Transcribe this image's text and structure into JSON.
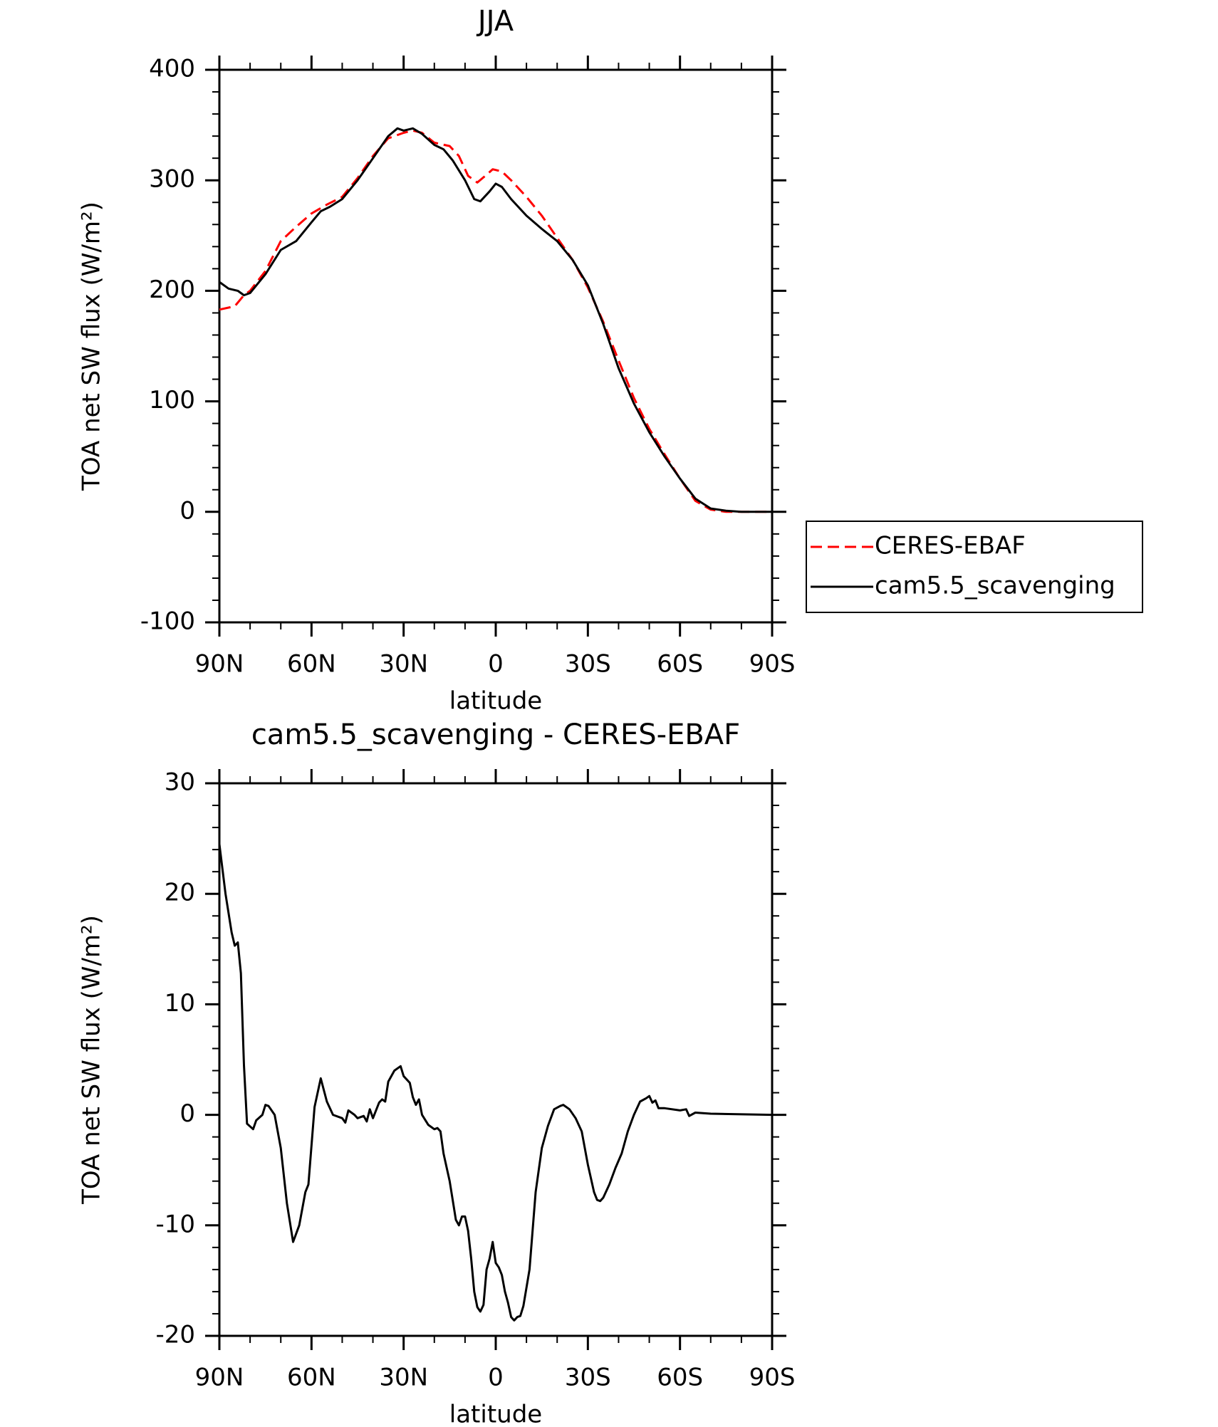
{
  "chart_data": [
    {
      "type": "line",
      "title": "JJA",
      "xlabel": "latitude",
      "ylabel": "TOA net SW flux (W/m²)",
      "xlim": [
        90,
        -90
      ],
      "xticks": [
        {
          "value": 90,
          "label": "90N"
        },
        {
          "value": 60,
          "label": "60N"
        },
        {
          "value": 30,
          "label": "30N"
        },
        0,
        {
          "value": -30,
          "label": "30S"
        },
        {
          "value": -60,
          "label": "60S"
        },
        {
          "value": -90,
          "label": "90S"
        }
      ],
      "ylim": [
        -100,
        400
      ],
      "yticks": [
        -100,
        0,
        100,
        200,
        300,
        400
      ],
      "legend": "right",
      "series": [
        {
          "name": "CERES-EBAF",
          "color": "#ff0000",
          "dash": true,
          "x": [
            90,
            85,
            82,
            80,
            75,
            70,
            65,
            60,
            55,
            50,
            45,
            40,
            35,
            30,
            27,
            24,
            20,
            15,
            12,
            9,
            6,
            3,
            1,
            -2,
            -5,
            -10,
            -15,
            -20,
            -25,
            -30,
            -35,
            -40,
            -45,
            -50,
            -55,
            -60,
            -65,
            -70,
            -75,
            -90
          ],
          "values": [
            183,
            186,
            196,
            200,
            218,
            245,
            258,
            270,
            278,
            285,
            302,
            322,
            338,
            343,
            345,
            343,
            334,
            331,
            322,
            304,
            298,
            305,
            310,
            308,
            300,
            285,
            268,
            248,
            228,
            203,
            172,
            137,
            103,
            75,
            52,
            30,
            10,
            2,
            0,
            0
          ]
        },
        {
          "name": "cam5.5_scavenging",
          "color": "#000000",
          "dash": false,
          "x": [
            90,
            87,
            84,
            82,
            80,
            75,
            70,
            65,
            60,
            57,
            54,
            50,
            45,
            40,
            35,
            32,
            30,
            27,
            24,
            20,
            17,
            14,
            10,
            7,
            5,
            2,
            0,
            -2,
            -5,
            -10,
            -15,
            -20,
            -25,
            -30,
            -35,
            -40,
            -45,
            -50,
            -55,
            -60,
            -65,
            -70,
            -75,
            -80,
            -90
          ],
          "values": [
            208,
            202,
            200,
            196,
            198,
            215,
            237,
            245,
            262,
            272,
            276,
            283,
            300,
            320,
            340,
            347,
            345,
            347,
            342,
            332,
            328,
            318,
            300,
            283,
            281,
            290,
            297,
            294,
            283,
            268,
            256,
            245,
            228,
            205,
            170,
            130,
            98,
            72,
            50,
            30,
            12,
            3,
            1,
            0,
            0
          ]
        }
      ]
    },
    {
      "type": "line",
      "title": "cam5.5_scavenging - CERES-EBAF",
      "xlabel": "latitude",
      "ylabel": "TOA net SW flux (W/m²)",
      "xlim": [
        90,
        -90
      ],
      "xticks": [
        {
          "value": 90,
          "label": "90N"
        },
        {
          "value": 60,
          "label": "60N"
        },
        {
          "value": 30,
          "label": "30N"
        },
        0,
        {
          "value": -30,
          "label": "30S"
        },
        {
          "value": -60,
          "label": "60S"
        },
        {
          "value": -90,
          "label": "90S"
        }
      ],
      "ylim": [
        -20,
        30
      ],
      "yticks": [
        -20,
        -10,
        0,
        10,
        20,
        30
      ],
      "color": "#000000",
      "x": [
        90,
        88,
        86,
        85,
        84,
        83,
        82,
        81,
        79,
        78,
        76,
        75,
        74,
        72,
        70,
        68,
        66,
        64,
        62,
        61,
        59,
        57,
        55,
        53,
        50,
        49,
        48,
        46,
        45,
        43,
        42,
        41,
        40,
        38,
        37,
        36,
        35,
        33,
        31,
        30,
        28,
        27,
        26,
        25,
        24,
        22,
        20,
        19,
        18,
        17,
        15,
        13,
        12,
        11,
        10,
        9,
        8,
        7,
        6,
        5,
        4,
        3,
        2,
        1,
        0,
        -1,
        -2,
        -3,
        -4,
        -5,
        -6,
        -7,
        -8,
        -9,
        -11,
        -13,
        -15,
        -17,
        -19,
        -21,
        -22,
        -24,
        -26,
        -28,
        -30,
        -32,
        -33,
        -34,
        -35,
        -37,
        -39,
        -41,
        -43,
        -45,
        -47,
        -49,
        -50,
        -51,
        -52,
        -53,
        -55,
        -60,
        -62,
        -63,
        -65,
        -70,
        -90
      ],
      "values": [
        24.5,
        20,
        16.5,
        15.3,
        15.6,
        12.8,
        4.5,
        -0.8,
        -1.3,
        -0.5,
        0,
        0.9,
        0.8,
        0,
        -3,
        -8,
        -11.5,
        -10,
        -7,
        -6.3,
        0.7,
        3.3,
        1.2,
        0,
        -0.3,
        -0.7,
        0.4,
        0,
        -0.3,
        -0.1,
        -0.6,
        0.5,
        -0.3,
        1.1,
        1.4,
        1.2,
        3,
        4,
        4.4,
        3.5,
        2.9,
        1.6,
        0.9,
        1.4,
        0,
        -0.9,
        -1.3,
        -1.2,
        -1.5,
        -3.5,
        -6,
        -9.5,
        -10,
        -9.2,
        -9.2,
        -10.5,
        -13,
        -16,
        -17.4,
        -17.8,
        -17.2,
        -14,
        -13,
        -11.5,
        -13.4,
        -13.8,
        -14.5,
        -16,
        -17,
        -18.3,
        -18.6,
        -18.3,
        -18.2,
        -17.3,
        -14,
        -7,
        -3,
        -1,
        0.5,
        0.8,
        0.9,
        0.5,
        -0.3,
        -1.5,
        -4.5,
        -7,
        -7.7,
        -7.8,
        -7.5,
        -6.3,
        -4.8,
        -3.5,
        -1.5,
        0,
        1.2,
        1.5,
        1.7,
        1.1,
        1.3,
        0.6,
        0.6,
        0.4,
        0.5,
        -0.1,
        0.2,
        0.1,
        0
      ]
    }
  ]
}
